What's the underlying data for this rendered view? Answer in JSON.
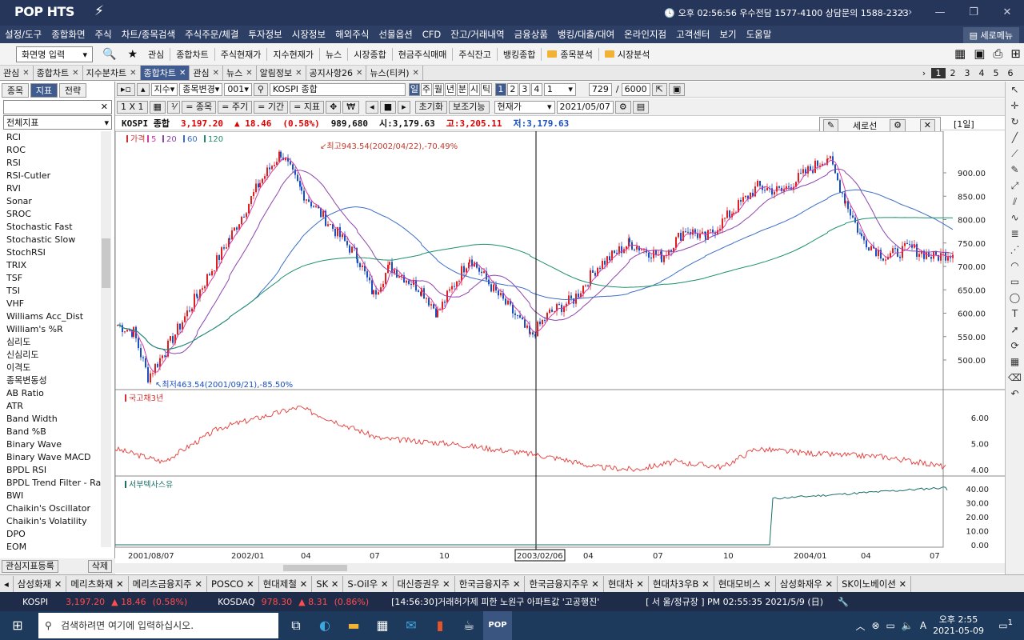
{
  "app": {
    "logo": "POP HTS",
    "title_info": "오후 02:56:56   우수전담 1577-4100 상담문의 1588-2323"
  },
  "menu": [
    "설정/도구",
    "종합화면",
    "주식",
    "차트/종목검색",
    "주식주문/체결",
    "투자정보",
    "시장정보",
    "해외주식",
    "선물옵션",
    "CFD",
    "잔고/거래내역",
    "금융상품",
    "뱅킹/대출/대여",
    "온라인지점",
    "고객센터",
    "보기",
    "도움말"
  ],
  "menu_right": "세로메뉴",
  "toolbar": {
    "screen_input": "화면명 입력",
    "items": [
      "관심",
      "종합차트",
      "주식현재가",
      "지수현재가",
      "뉴스",
      "시장종합",
      "현금주식매매",
      "주식잔고",
      "뱅킹종합"
    ],
    "folders": [
      "종목분석",
      "시장분석"
    ]
  },
  "tabs": [
    {
      "label": "관심"
    },
    {
      "label": "종합차트"
    },
    {
      "label": "지수분차트"
    },
    {
      "label": "종합차트",
      "active": true
    },
    {
      "label": "관심"
    },
    {
      "label": "뉴스"
    },
    {
      "label": "알림정보"
    },
    {
      "label": "공지사항26"
    },
    {
      "label": "뉴스(티커)"
    }
  ],
  "pages": [
    "1",
    "2",
    "3",
    "4",
    "5",
    "6"
  ],
  "left": {
    "tabs": [
      "종목",
      "지표",
      "전략"
    ],
    "active_tab": "지표",
    "combo": "전체지표",
    "items": [
      "RCI",
      "ROC",
      "RSI",
      "RSI-Cutler",
      "RVI",
      "Sonar",
      "SROC",
      "Stochastic Fast",
      "Stochastic Slow",
      "StochRSI",
      "TRIX",
      "TSF",
      "TSI",
      "VHF",
      "Williams Acc_Dist",
      "William's %R",
      "심리도",
      "신심리도",
      "이격도",
      "종목변동성",
      "AB Ratio",
      "ATR",
      "Band Width",
      "Band %B",
      "Binary Wave",
      "Binary Wave MACD",
      "BPDL RSI",
      "BPDL Trend Filter - Raw",
      "BWI",
      "Chaikin's Oscillator",
      "Chaikin's Volatility",
      "DPO",
      "EOM"
    ],
    "register": "관심지표등록",
    "delete": "삭제"
  },
  "ctrl": {
    "type": "지수",
    "change": "종목변경",
    "code": "001",
    "name": "KOSPI 종합",
    "periods": [
      "일",
      "주",
      "월",
      "년",
      "분",
      "시",
      "틱"
    ],
    "active_period": "일",
    "nums": [
      "1",
      "2",
      "3",
      "4"
    ],
    "num_sel": "1",
    "count": "729",
    "total": "6000",
    "scale": "1 X 1",
    "btns": [
      "종목",
      "주기",
      "기간",
      "지표"
    ],
    "reset": "초기화",
    "aux": "보조기능",
    "price_type": "현재가",
    "date": "2021/05/07"
  },
  "quote": {
    "name": "KOSPI 종합",
    "price": "3,197.20",
    "change": "▲ 18.46",
    "pct": "(0.58%)",
    "volume": "989,680",
    "open": "시:3,179.63",
    "high": "고:3,205.11",
    "low": "저:3,179.63"
  },
  "seline": "세로선",
  "daylabel": "[1일]",
  "chart_data": {
    "type": "candlestick",
    "price_panel": {
      "legend": [
        "가격",
        "5",
        "20",
        "60",
        "120"
      ],
      "legend_colors": [
        "#d32f2f",
        "#d63aa0",
        "#8e44ad",
        "#3b6ec8",
        "#1a8f6a"
      ],
      "yticks": [
        "900.00",
        "850.00",
        "800.00",
        "750.00",
        "700.00",
        "650.00",
        "600.00",
        "550.00",
        "500.00"
      ],
      "annotations": {
        "high": "최고943.54(2002/04/22),-70.49%",
        "low": "최저463.54(2001/09/21),-85.50%"
      },
      "anchors": [
        [
          0,
          575
        ],
        [
          20,
          560
        ],
        [
          38,
          464
        ],
        [
          60,
          520
        ],
        [
          100,
          640
        ],
        [
          140,
          760
        ],
        [
          178,
          880
        ],
        [
          204,
          943
        ],
        [
          230,
          860
        ],
        [
          260,
          800
        ],
        [
          300,
          720
        ],
        [
          320,
          640
        ],
        [
          340,
          700
        ],
        [
          380,
          650
        ],
        [
          400,
          600
        ],
        [
          440,
          720
        ],
        [
          470,
          650
        ],
        [
          500,
          590
        ],
        [
          516,
          550
        ],
        [
          540,
          600
        ],
        [
          570,
          630
        ],
        [
          600,
          700
        ],
        [
          640,
          750
        ],
        [
          680,
          720
        ],
        [
          710,
          780
        ],
        [
          735,
          760
        ],
        [
          770,
          820
        ],
        [
          800,
          870
        ],
        [
          830,
          860
        ],
        [
          860,
          900
        ],
        [
          888,
          935
        ],
        [
          910,
          840
        ],
        [
          930,
          760
        ],
        [
          960,
          720
        ],
        [
          990,
          740
        ],
        [
          1020,
          720
        ],
        [
          1045,
          730
        ]
      ],
      "ma_colors": [
        "#d63aa0",
        "#8e44ad",
        "#3b6ec8",
        "#1a8f6a"
      ]
    },
    "panel2": {
      "label": "국고채3년",
      "yticks": [
        "6.00",
        "5.00",
        "4.00"
      ]
    },
    "panel3": {
      "label": "서부텍사스유",
      "yticks": [
        "40.00",
        "30.00",
        "20.00",
        "10.00",
        "0.00"
      ]
    },
    "xticks": [
      "2001/08/07",
      "2002/01",
      "04",
      "07",
      "10",
      "2003/02/06",
      "04",
      "07",
      "10",
      "2004/01",
      "04",
      "07"
    ]
  },
  "stocktabs": [
    "삼성화재",
    "메리츠화재",
    "메리츠금융지주",
    "POSCO",
    "현대제철",
    "SK",
    "S-Oil우",
    "대신증권우",
    "한국금융지주",
    "한국금융지주우",
    "현대차",
    "현대차3우B",
    "현대모비스",
    "삼성화재우",
    "SK이노베이션"
  ],
  "ticker": {
    "kospi": "KOSPI",
    "kospi_val": "3,197.20",
    "kospi_chg": "▲ 18.46",
    "kospi_pct": "(0.58%)",
    "kosdaq": "KOSDAQ",
    "kosdaq_val": "978.30",
    "kosdaq_chg": "▲ 8.31",
    "kosdaq_pct": "(0.86%)",
    "news": "[14:56:30]거래허가제 피한 노원구 아파트값 '고공행진'",
    "status": "[ 서  울/정규장 ] PM 02:55:35  2021/5/9 (日)"
  },
  "taskbar": {
    "search": "검색하려면 여기에 입력하십시오.",
    "time": "오후 2:55",
    "date": "2021-05-09",
    "lang": "A",
    "notif": "1"
  }
}
